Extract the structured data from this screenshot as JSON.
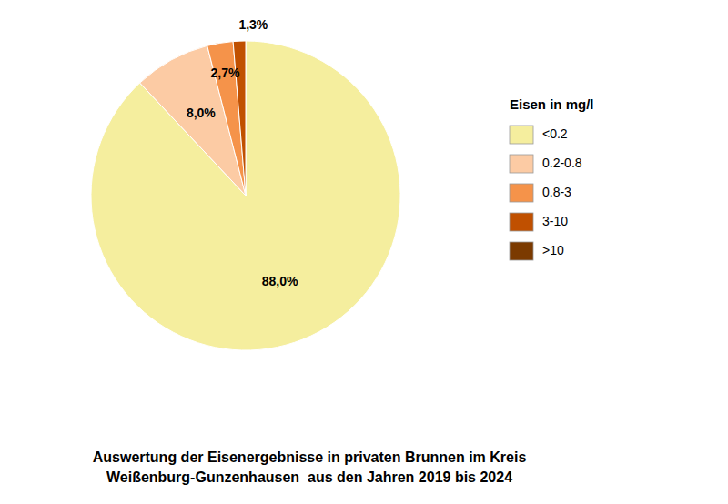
{
  "chart_data": {
    "type": "pie",
    "title": "Auswertung der Eisenergebnisse in privaten Brunnen im Kreis\nWeißenburg-Gunzenhausen  aus den Jahren 2019 bis 2024",
    "categories": [
      "<0.2",
      "0.2-0.8",
      "0.8-3",
      "3-10",
      ">10"
    ],
    "values": [
      88.0,
      8.0,
      2.7,
      1.3,
      null
    ],
    "value_labels": [
      "88,0%",
      "8,0%",
      "2,7%",
      "1,3%",
      null
    ],
    "colors": [
      "#F5EE9E",
      "#FCCBA4",
      "#F5934A",
      "#C05000",
      "#7B3A00"
    ],
    "legend_title": "Eisen in mg/l",
    "legend": "right",
    "data_labels": true
  }
}
